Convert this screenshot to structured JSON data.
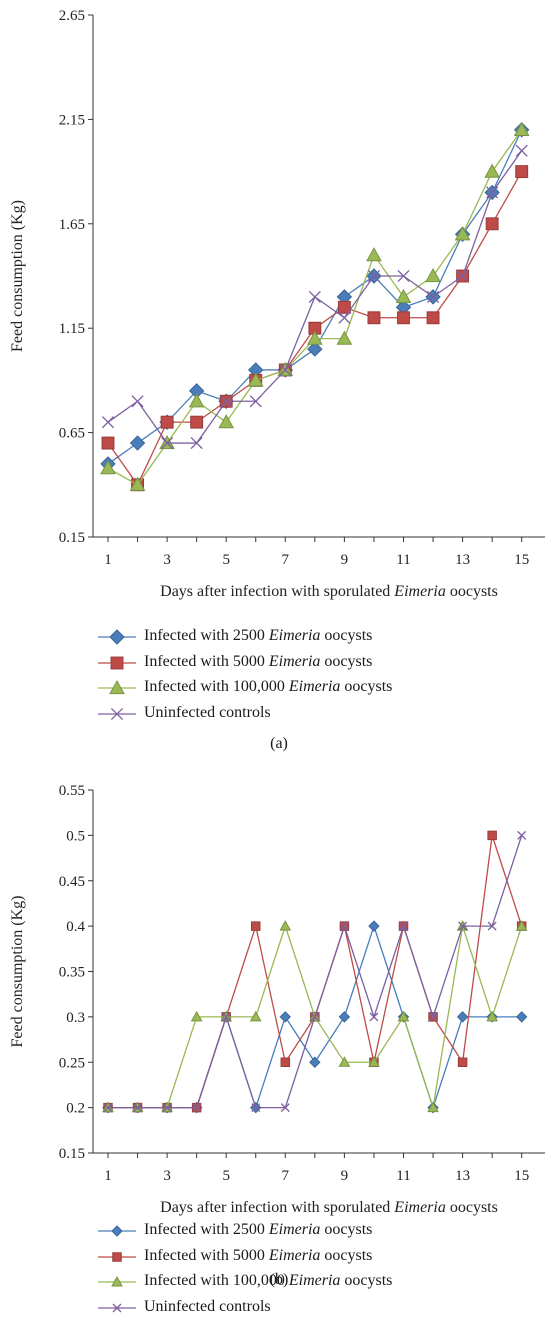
{
  "chart_data": [
    {
      "type": "line",
      "panel_label": "(a)",
      "xlabel": {
        "prefix": "Days after infection with sporulated ",
        "emph": "Eimeria",
        "suffix": " oocysts"
      },
      "ylabel": "Feed consumption (Kg)",
      "ylim": [
        0.15,
        2.65
      ],
      "yticks": [
        "0.15",
        "0.65",
        "1.15",
        "1.65",
        "2.15",
        "2.65"
      ],
      "xticks": [
        "1",
        "3",
        "5",
        "7",
        "9",
        "11",
        "13",
        "15"
      ],
      "x": [
        1,
        2,
        3,
        4,
        5,
        6,
        7,
        8,
        9,
        10,
        11,
        12,
        13,
        14,
        15
      ],
      "grid": false,
      "legend_position": "bottom",
      "series": [
        {
          "name": "Infected with 2500 Eimeria oocysts",
          "legend": {
            "pre": "Infected with 2500 ",
            "emph": "Eimeria",
            "post": " oocysts"
          },
          "color": "#4a7ebb",
          "marker": "diamond",
          "values": [
            0.5,
            0.6,
            0.7,
            0.85,
            0.8,
            0.95,
            0.95,
            1.05,
            1.3,
            1.4,
            1.25,
            1.3,
            1.6,
            1.8,
            2.1
          ]
        },
        {
          "name": "Infected with 5000 Eimeria oocysts",
          "legend": {
            "pre": "Infected with 5000 ",
            "emph": "Eimeria",
            "post": " oocysts"
          },
          "color": "#be4b48",
          "marker": "square",
          "values": [
            0.6,
            0.4,
            0.7,
            0.7,
            0.8,
            0.9,
            0.95,
            1.15,
            1.25,
            1.2,
            1.2,
            1.2,
            1.4,
            1.65,
            1.9
          ]
        },
        {
          "name": "Infected with 100,000 Eimeria oocysts",
          "legend": {
            "pre": "Infected with 100,000 ",
            "emph": "Eimeria",
            "post": " oocysts"
          },
          "color": "#98b954",
          "marker": "triangle",
          "values": [
            0.48,
            0.4,
            0.6,
            0.8,
            0.7,
            0.9,
            0.95,
            1.1,
            1.1,
            1.5,
            1.3,
            1.4,
            1.6,
            1.9,
            2.1
          ]
        },
        {
          "name": "Uninfected controls",
          "legend": {
            "pre": "Uninfected controls",
            "emph": "",
            "post": ""
          },
          "color": "#7d60a0",
          "marker": "x",
          "values": [
            0.7,
            0.8,
            0.6,
            0.6,
            0.8,
            0.8,
            0.95,
            1.3,
            1.2,
            1.4,
            1.4,
            1.3,
            1.4,
            1.8,
            2.0
          ]
        }
      ]
    },
    {
      "type": "line",
      "panel_label": "(b)",
      "xlabel": {
        "prefix": "Days after infection with sporulated ",
        "emph": "Eimeria",
        "suffix": " oocysts"
      },
      "ylabel": "Feed consumption (Kg)",
      "ylim": [
        0.15,
        0.55
      ],
      "yticks": [
        "0.15",
        "0.2",
        "0.25",
        "0.3",
        "0.35",
        "0.4",
        "0.45",
        "0.5",
        "0.55"
      ],
      "xticks": [
        "1",
        "3",
        "5",
        "7",
        "9",
        "11",
        "13",
        "15"
      ],
      "x": [
        1,
        2,
        3,
        4,
        5,
        6,
        7,
        8,
        9,
        10,
        11,
        12,
        13,
        14,
        15
      ],
      "grid": false,
      "legend_position": "bottom",
      "series": [
        {
          "name": "Infected with 2500 Eimeria oocysts",
          "legend": {
            "pre": "Infected with 2500 ",
            "emph": "Eimeria",
            "post": " oocysts"
          },
          "color": "#4a7ebb",
          "marker": "diamond",
          "values": [
            0.2,
            0.2,
            0.2,
            0.2,
            0.3,
            0.2,
            0.3,
            0.25,
            0.3,
            0.4,
            0.3,
            0.2,
            0.3,
            0.3,
            0.3
          ]
        },
        {
          "name": "Infected with 5000 Eimeria oocysts",
          "legend": {
            "pre": "Infected with 5000 ",
            "emph": "Eimeria",
            "post": " oocysts"
          },
          "color": "#be4b48",
          "marker": "square",
          "values": [
            0.2,
            0.2,
            0.2,
            0.2,
            0.3,
            0.4,
            0.25,
            0.3,
            0.4,
            0.25,
            0.4,
            0.3,
            0.25,
            0.5,
            0.4
          ]
        },
        {
          "name": "Infected with 100,000 Eimeria oocysts",
          "legend": {
            "pre": "Infected with 100,000 ",
            "emph": "Eimeria",
            "post": " oocysts"
          },
          "color": "#98b954",
          "marker": "triangle",
          "values": [
            0.2,
            0.2,
            0.2,
            0.3,
            0.3,
            0.3,
            0.4,
            0.3,
            0.25,
            0.25,
            0.3,
            0.2,
            0.4,
            0.3,
            0.4
          ]
        },
        {
          "name": "Uninfected controls",
          "legend": {
            "pre": "Uninfected controls",
            "emph": "",
            "post": ""
          },
          "color": "#7d60a0",
          "marker": "x",
          "values": [
            0.2,
            0.2,
            0.2,
            0.2,
            0.3,
            0.2,
            0.2,
            0.3,
            0.4,
            0.3,
            0.4,
            0.3,
            0.4,
            0.4,
            0.5
          ]
        }
      ]
    }
  ]
}
